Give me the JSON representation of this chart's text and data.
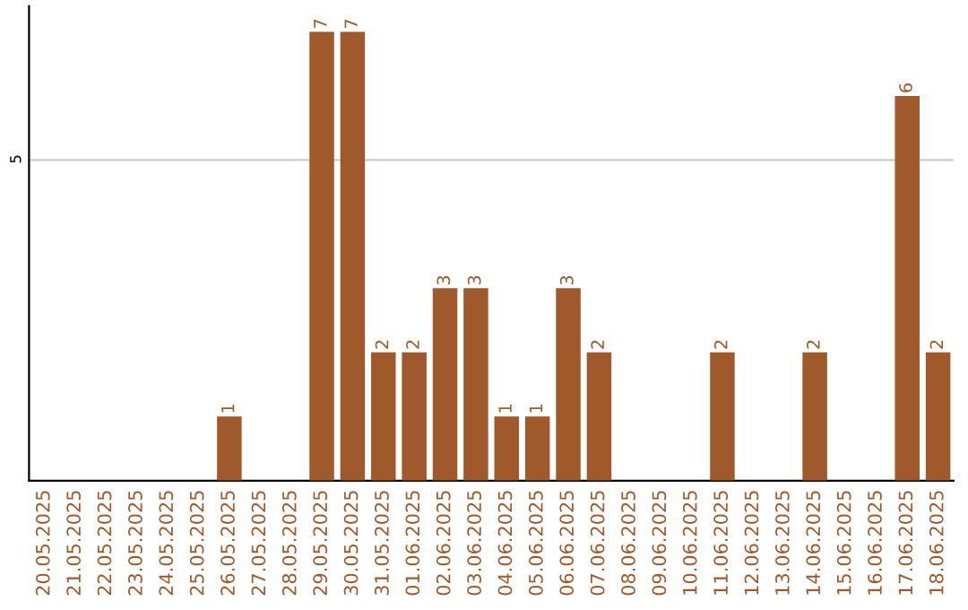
{
  "chart_data": {
    "type": "bar",
    "categories": [
      "20.05.2025",
      "21.05.2025",
      "22.05.2025",
      "23.05.2025",
      "24.05.2025",
      "25.05.2025",
      "26.05.2025",
      "27.05.2025",
      "28.05.2025",
      "29.05.2025",
      "30.05.2025",
      "31.05.2025",
      "01.06.2025",
      "02.06.2025",
      "03.06.2025",
      "04.06.2025",
      "05.06.2025",
      "06.06.2025",
      "07.06.2025",
      "08.06.2025",
      "09.06.2025",
      "10.06.2025",
      "11.06.2025",
      "12.06.2025",
      "13.06.2025",
      "14.06.2025",
      "15.06.2025",
      "16.06.2025",
      "17.06.2025",
      "18.06.2025"
    ],
    "values": [
      0,
      0,
      0,
      0,
      0,
      0,
      1,
      0,
      0,
      7,
      7,
      2,
      2,
      3,
      3,
      1,
      1,
      3,
      2,
      0,
      0,
      0,
      2,
      0,
      0,
      2,
      0,
      0,
      6,
      2
    ],
    "value_labels": [
      null,
      null,
      null,
      null,
      null,
      null,
      "1",
      null,
      null,
      "7",
      "7",
      "2",
      "2",
      "3",
      "3",
      "1",
      "1",
      "3",
      "2",
      null,
      null,
      null,
      "2",
      null,
      null,
      "2",
      null,
      null,
      "6",
      "2"
    ],
    "color": "#a0592a",
    "ylim": [
      0,
      7.4
    ],
    "yticks": [
      5
    ],
    "grid": "y"
  }
}
